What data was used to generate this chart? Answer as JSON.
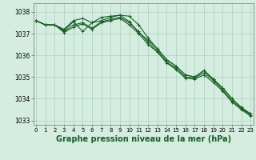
{
  "x": [
    0,
    1,
    2,
    3,
    4,
    5,
    6,
    7,
    8,
    9,
    10,
    11,
    12,
    13,
    14,
    15,
    16,
    17,
    18,
    19,
    20,
    21,
    22,
    23
  ],
  "series": [
    [
      1037.6,
      1037.4,
      1037.4,
      1037.2,
      1037.6,
      1037.7,
      1037.5,
      1037.75,
      1037.8,
      1037.85,
      1037.8,
      1037.4,
      1036.8,
      1036.3,
      1035.8,
      1035.5,
      1035.1,
      1035.0,
      1035.3,
      1034.9,
      1034.5,
      1034.0,
      1033.6,
      1033.3
    ],
    [
      1037.6,
      1037.4,
      1037.4,
      1037.15,
      1037.55,
      1037.1,
      1037.5,
      1037.6,
      1037.75,
      1037.85,
      1037.55,
      1037.05,
      1036.7,
      1036.3,
      1035.8,
      1035.5,
      1035.1,
      1035.0,
      1035.3,
      1034.9,
      1034.5,
      1034.0,
      1033.6,
      1033.3
    ],
    [
      1037.6,
      1037.4,
      1037.4,
      1037.1,
      1037.4,
      1037.5,
      1037.25,
      1037.55,
      1037.65,
      1037.75,
      1037.5,
      1037.1,
      1036.6,
      1036.2,
      1035.7,
      1035.4,
      1035.0,
      1034.95,
      1035.2,
      1034.85,
      1034.4,
      1033.9,
      1033.55,
      1033.25
    ],
    [
      1037.6,
      1037.4,
      1037.4,
      1037.05,
      1037.3,
      1037.45,
      1037.2,
      1037.5,
      1037.6,
      1037.7,
      1037.4,
      1037.0,
      1036.5,
      1036.15,
      1035.65,
      1035.35,
      1034.95,
      1034.9,
      1035.1,
      1034.75,
      1034.35,
      1033.85,
      1033.5,
      1033.2
    ]
  ],
  "bg_color": "#d4ede0",
  "line_color": "#1a5c28",
  "grid_color": "#aacfb8",
  "ylabel_ticks": [
    1033,
    1034,
    1035,
    1036,
    1037,
    1038
  ],
  "xlabel_ticks": [
    0,
    1,
    2,
    3,
    4,
    5,
    6,
    7,
    8,
    9,
    10,
    11,
    12,
    13,
    14,
    15,
    16,
    17,
    18,
    19,
    20,
    21,
    22,
    23
  ],
  "ylim": [
    1032.8,
    1038.4
  ],
  "xlim": [
    -0.3,
    23.3
  ],
  "xlabel": "Graphe pression niveau de la mer (hPa)",
  "xlabel_fontsize": 7,
  "tick_fontsize": 5.5,
  "line_width": 0.8,
  "marker": "+",
  "marker_size": 3
}
